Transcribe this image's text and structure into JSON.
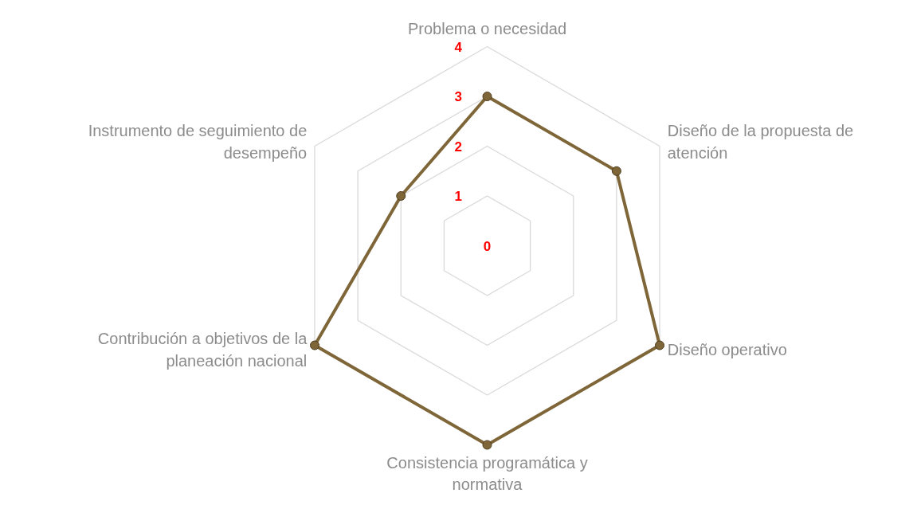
{
  "chart_data": {
    "type": "radar",
    "categories": [
      "Problema o necesidad",
      "Diseño de la propuesta de atención",
      "Diseño operativo",
      "Consistencia programática y normativa",
      "Contribución a objetivos de la planeación nacional",
      "Instrumento de seguimiento de desempeño"
    ],
    "series": [
      {
        "color": "#7f6639",
        "values": [
          3,
          3,
          4,
          4,
          4,
          2
        ]
      }
    ],
    "ylim": [
      0,
      4
    ],
    "yticks": [
      0,
      1,
      2,
      3,
      4
    ],
    "grid": true,
    "marker": "circle",
    "line_style": "solid"
  }
}
